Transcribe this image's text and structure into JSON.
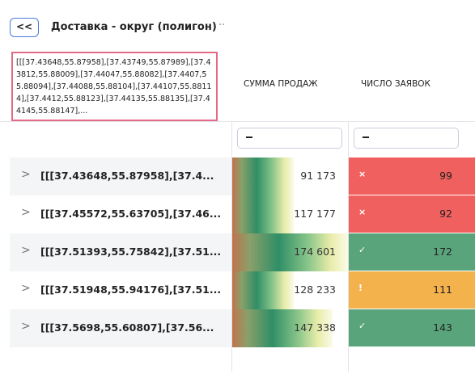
{
  "header": {
    "back": "<<",
    "title": "Доставка - округ (полигон)"
  },
  "table": {
    "columns": [
      "[[[37.43648,55.87958],[37.43749,55.87989],[37.43812,55.88009],[37.44047,55.88082],[37.4407,55.88094],[37.44088,55.88104],[37.44107,55.88114],[37.4412,55.88123],[37.44135,55.88135],[37.44145,55.88147],...",
      "СУММА ПРОДАЖ",
      "ЧИСЛО ЗАЯВОК"
    ],
    "rows": [
      {
        "label": "[[[37.43648,55.87958],[37.4...",
        "sales": "91 173",
        "icon": "×",
        "count": "99",
        "color": "#f0605e"
      },
      {
        "label": "[[[37.45572,55.63705],[37.46...",
        "sales": "117 177",
        "icon": "×",
        "count": "92",
        "color": "#f0605e"
      },
      {
        "label": "[[[37.51393,55.75842],[37.51...",
        "sales": "174 601",
        "icon": "✓",
        "count": "172",
        "color": "#5aa47c"
      },
      {
        "label": "[[[37.51948,55.94176],[37.51...",
        "sales": "128 233",
        "icon": "!",
        "count": "111",
        "color": "#f3b24c"
      },
      {
        "label": "[[[37.5698,55.60807],[37.56...",
        "sales": "147 338",
        "icon": "✓",
        "count": "143",
        "color": "#5aa47c"
      }
    ]
  }
}
